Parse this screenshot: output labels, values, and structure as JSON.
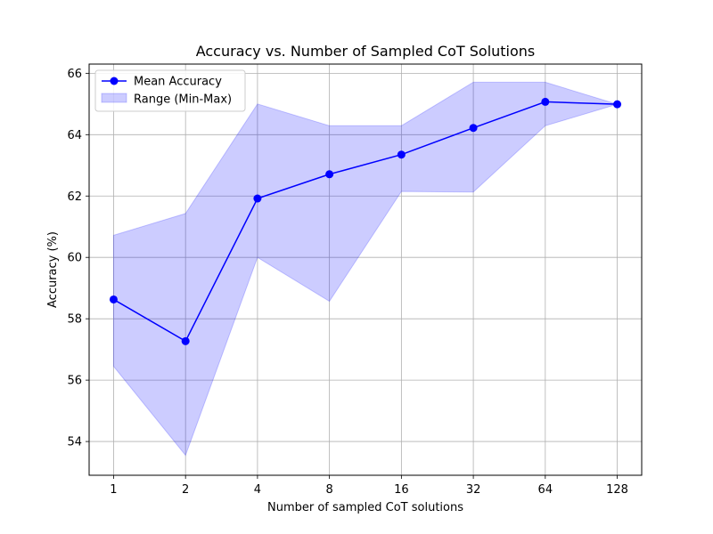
{
  "chart_data": {
    "type": "line",
    "title": "Accuracy vs. Number of Sampled CoT Solutions",
    "xlabel": "Number of sampled CoT solutions",
    "ylabel": "Accuracy (%)",
    "x_scale": "log2",
    "categories": [
      "1",
      "2",
      "4",
      "8",
      "16",
      "32",
      "64",
      "128"
    ],
    "x": [
      1,
      2,
      4,
      8,
      16,
      32,
      64,
      128
    ],
    "series": [
      {
        "name": "Mean Accuracy",
        "kind": "line-marker",
        "color": "#0000ff",
        "values": [
          58.63,
          57.27,
          61.92,
          62.71,
          63.35,
          64.22,
          65.07,
          64.99
        ]
      },
      {
        "name": "Range (Min-Max)",
        "kind": "band",
        "color": "#0000ff",
        "fill_opacity": 0.2,
        "min": [
          56.45,
          53.55,
          60.0,
          58.57,
          62.15,
          62.13,
          64.29,
          64.99
        ],
        "max": [
          60.72,
          61.43,
          65.0,
          64.29,
          64.29,
          65.71,
          65.71,
          64.99
        ]
      }
    ],
    "ylim": [
      52.9,
      66.3
    ],
    "yticks": [
      54,
      56,
      58,
      60,
      62,
      64,
      66
    ],
    "grid": true,
    "legend_position": "top-left"
  }
}
